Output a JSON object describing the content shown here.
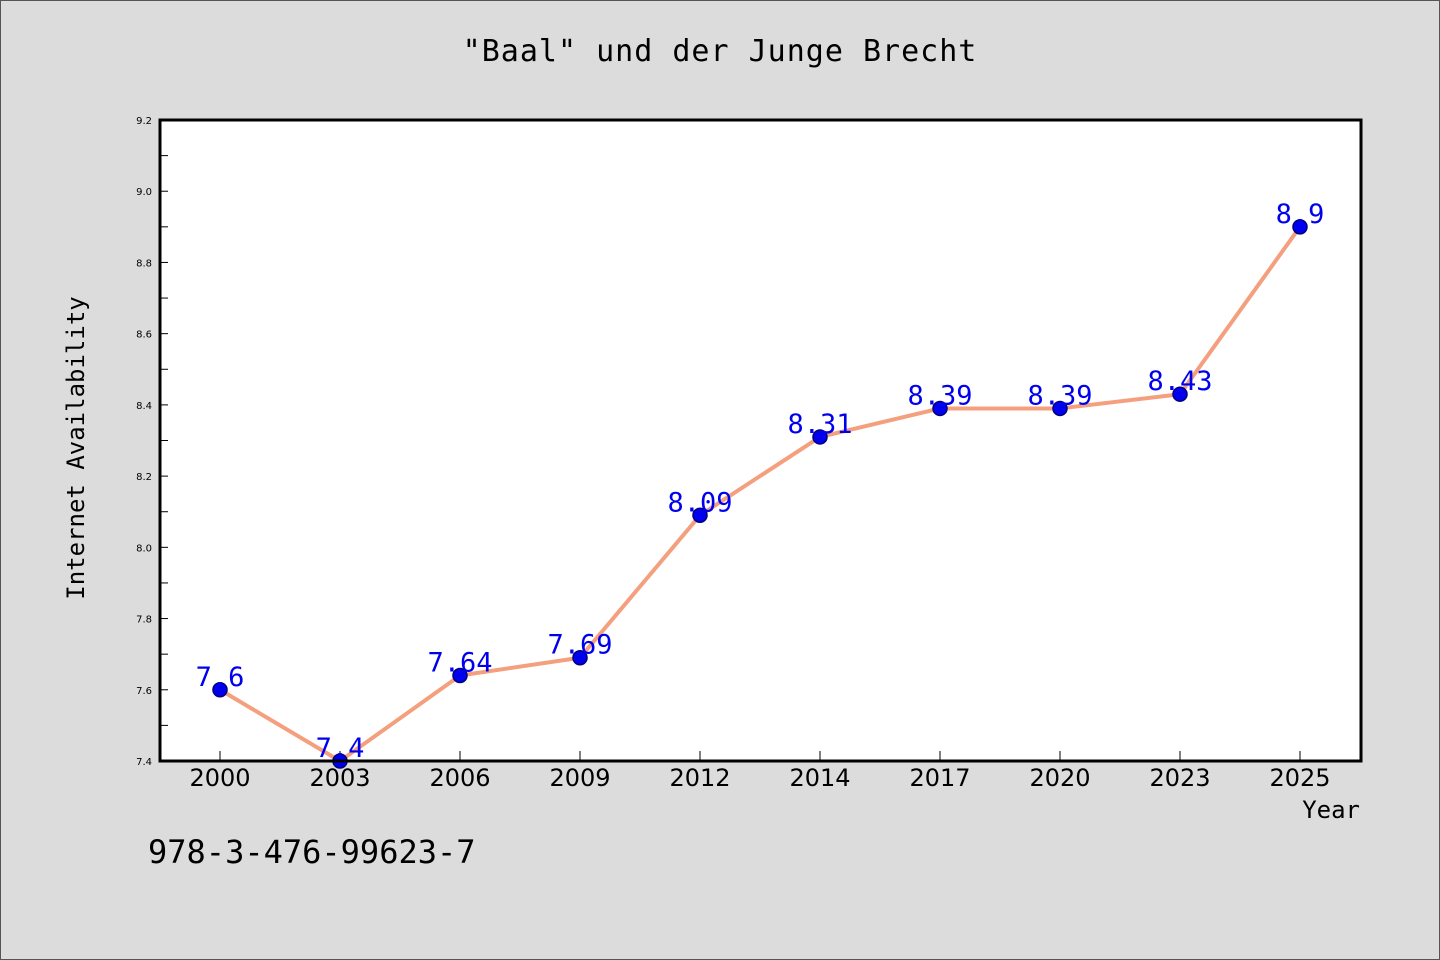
{
  "chart_data": {
    "type": "line",
    "title": "\"Baal\" und der Junge Brecht",
    "xlabel": "Year",
    "ylabel": "Internet Availability",
    "categories": [
      "2000",
      "2003",
      "2006",
      "2009",
      "2012",
      "2014",
      "2017",
      "2020",
      "2023",
      "2025"
    ],
    "series": [
      {
        "values": [
          7.6,
          7.4,
          7.64,
          7.69,
          8.09,
          8.31,
          8.39,
          8.39,
          8.43,
          8.9
        ],
        "data_labels": [
          "7.6",
          "7.4",
          "7.64",
          "7.69",
          "8.09",
          "8.31",
          "8.39",
          "8.39",
          "8.43",
          "8.9"
        ]
      }
    ],
    "ylim": [
      7.4,
      9.2
    ],
    "yticks": [
      "7.4",
      "7.6",
      "7.8",
      "8.0",
      "8.2",
      "8.4",
      "8.6",
      "8.8",
      "9.0",
      "9.2"
    ],
    "grid": false,
    "colors": {
      "line": "#f4a07e",
      "marker": "#0000ee",
      "marker_edge": "#00007a",
      "data_label": "#0000ee",
      "background": "#dcdcdc",
      "plot_background": "#ffffff"
    }
  },
  "footer": {
    "isbn": "978-3-476-99623-7"
  }
}
